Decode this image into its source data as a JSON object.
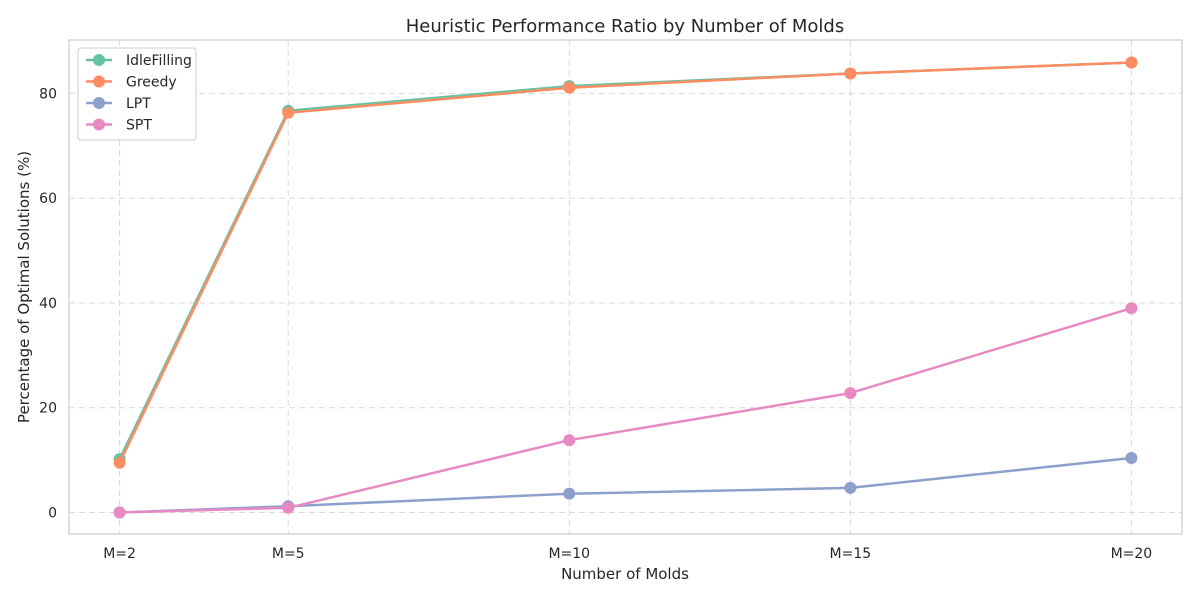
{
  "chart_data": {
    "type": "line",
    "title": "Heuristic Performance Ratio by Number of Molds",
    "xlabel": "Number of Molds",
    "ylabel": "Percentage of Optimal Solutions (%)",
    "x": [
      2,
      5,
      10,
      15,
      20
    ],
    "categories": [
      "M=2",
      "M=5",
      "M=10",
      "M=15",
      "M=20"
    ],
    "xlim": [
      1.1,
      20.9
    ],
    "ylim": [
      -4.1,
      90.2
    ],
    "yticks": [
      0,
      20,
      40,
      60,
      80
    ],
    "grid": true,
    "legend_position": "upper left",
    "series": [
      {
        "name": "IdleFilling",
        "color": "#66c2a5",
        "values": [
          10.2,
          76.7,
          81.4,
          83.8,
          85.9
        ]
      },
      {
        "name": "Greedy",
        "color": "#fc8d62",
        "values": [
          9.5,
          76.3,
          81.1,
          83.8,
          85.9
        ]
      },
      {
        "name": "LPT",
        "color": "#8da0cb",
        "values": [
          0.0,
          1.2,
          3.6,
          4.7,
          10.4
        ]
      },
      {
        "name": "SPT",
        "color": "#e78ac3",
        "values": [
          0.0,
          0.9,
          13.8,
          22.8,
          39.0
        ]
      }
    ]
  }
}
